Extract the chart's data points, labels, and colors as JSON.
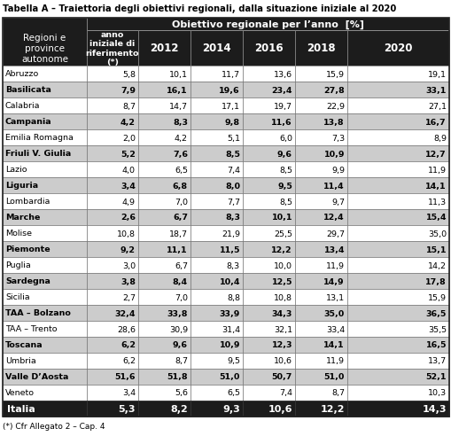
{
  "title": "Tabella A – Traiettoria degli obiettivi regionali, dalla situazione iniziale al 2020",
  "header1": "Obiettivo regionale per l’anno  [%]",
  "col_headers": [
    "anno\niniziale di\nriferimento\n(*)",
    "2012",
    "2014",
    "2016",
    "2018",
    "2020"
  ],
  "row_header": "Regioni e\nprovince\nautonome",
  "footnote": "(*) Cfr Allegato 2 – Cap. 4",
  "rows": [
    {
      "name": "Abruzzo",
      "bold": false,
      "shaded": false,
      "values": [
        "5,8",
        "10,1",
        "11,7",
        "13,6",
        "15,9",
        "19,1"
      ]
    },
    {
      "name": "Basilicata",
      "bold": true,
      "shaded": true,
      "values": [
        "7,9",
        "16,1",
        "19,6",
        "23,4",
        "27,8",
        "33,1"
      ]
    },
    {
      "name": "Calabria",
      "bold": false,
      "shaded": false,
      "values": [
        "8,7",
        "14,7",
        "17,1",
        "19,7",
        "22,9",
        "27,1"
      ]
    },
    {
      "name": "Campania",
      "bold": true,
      "shaded": true,
      "values": [
        "4,2",
        "8,3",
        "9,8",
        "11,6",
        "13,8",
        "16,7"
      ]
    },
    {
      "name": "Emilia Romagna",
      "bold": false,
      "shaded": false,
      "values": [
        "2,0",
        "4,2",
        "5,1",
        "6,0",
        "7,3",
        "8,9"
      ]
    },
    {
      "name": "Friuli V. Giulia",
      "bold": true,
      "shaded": true,
      "values": [
        "5,2",
        "7,6",
        "8,5",
        "9,6",
        "10,9",
        "12,7"
      ]
    },
    {
      "name": "Lazio",
      "bold": false,
      "shaded": false,
      "values": [
        "4,0",
        "6,5",
        "7,4",
        "8,5",
        "9,9",
        "11,9"
      ]
    },
    {
      "name": "Liguria",
      "bold": true,
      "shaded": true,
      "values": [
        "3,4",
        "6,8",
        "8,0",
        "9,5",
        "11,4",
        "14,1"
      ]
    },
    {
      "name": "Lombardia",
      "bold": false,
      "shaded": false,
      "values": [
        "4,9",
        "7,0",
        "7,7",
        "8,5",
        "9,7",
        "11,3"
      ]
    },
    {
      "name": "Marche",
      "bold": true,
      "shaded": true,
      "values": [
        "2,6",
        "6,7",
        "8,3",
        "10,1",
        "12,4",
        "15,4"
      ]
    },
    {
      "name": "Molise",
      "bold": false,
      "shaded": false,
      "values": [
        "10,8",
        "18,7",
        "21,9",
        "25,5",
        "29,7",
        "35,0"
      ]
    },
    {
      "name": "Piemonte",
      "bold": true,
      "shaded": true,
      "values": [
        "9,2",
        "11,1",
        "11,5",
        "12,2",
        "13,4",
        "15,1"
      ]
    },
    {
      "name": "Puglia",
      "bold": false,
      "shaded": false,
      "values": [
        "3,0",
        "6,7",
        "8,3",
        "10,0",
        "11,9",
        "14,2"
      ]
    },
    {
      "name": "Sardegna",
      "bold": true,
      "shaded": true,
      "values": [
        "3,8",
        "8,4",
        "10,4",
        "12,5",
        "14,9",
        "17,8"
      ]
    },
    {
      "name": "Sicilia",
      "bold": false,
      "shaded": false,
      "values": [
        "2,7",
        "7,0",
        "8,8",
        "10,8",
        "13,1",
        "15,9"
      ]
    },
    {
      "name": "TAA – Bolzano",
      "bold": true,
      "shaded": true,
      "values": [
        "32,4",
        "33,8",
        "33,9",
        "34,3",
        "35,0",
        "36,5"
      ]
    },
    {
      "name": "TAA – Trento",
      "bold": false,
      "shaded": false,
      "values": [
        "28,6",
        "30,9",
        "31,4",
        "32,1",
        "33,4",
        "35,5"
      ]
    },
    {
      "name": "Toscana",
      "bold": true,
      "shaded": true,
      "values": [
        "6,2",
        "9,6",
        "10,9",
        "12,3",
        "14,1",
        "16,5"
      ]
    },
    {
      "name": "Umbria",
      "bold": false,
      "shaded": false,
      "values": [
        "6,2",
        "8,7",
        "9,5",
        "10,6",
        "11,9",
        "13,7"
      ]
    },
    {
      "name": "Valle D’Aosta",
      "bold": true,
      "shaded": true,
      "values": [
        "51,6",
        "51,8",
        "51,0",
        "50,7",
        "51,0",
        "52,1"
      ]
    },
    {
      "name": "Veneto",
      "bold": false,
      "shaded": false,
      "values": [
        "3,4",
        "5,6",
        "6,5",
        "7,4",
        "8,7",
        "10,3"
      ]
    }
  ],
  "footer_row": {
    "name": "Italia",
    "values": [
      "5,3",
      "8,2",
      "9,3",
      "10,6",
      "12,2",
      "14,3"
    ]
  },
  "color_header_dark": "#1c1c1c",
  "color_shaded": "#cccccc",
  "color_white": "#ffffff",
  "color_border": "#666666"
}
